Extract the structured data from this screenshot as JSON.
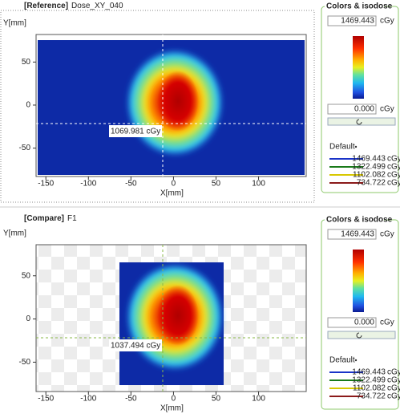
{
  "panels": [
    {
      "tag": "[Reference]",
      "name": "Dose_XY_040",
      "y_axis_label": "Y[mm]",
      "x_axis_label": "X[mm]",
      "xlim": [
        -161.5,
        156
      ],
      "ylim": [
        -83,
        82
      ],
      "xticks": [
        -150,
        -100,
        -50,
        0,
        50,
        100
      ],
      "yticks": [
        50,
        0,
        -50
      ],
      "crosshair_label": "1069.981 cGy",
      "colors": {
        "title": "Colors & isodose",
        "max": "1469.443",
        "min": "0.000",
        "unit": "cGy",
        "default": "Default",
        "isodose": [
          {
            "value": "1469.443",
            "unit": "cGy",
            "color": "#1a33c8"
          },
          {
            "value": "1322.499",
            "unit": "cGy",
            "color": "#1a7a1a"
          },
          {
            "value": "1102.082",
            "unit": "cGy",
            "color": "#d8c800"
          },
          {
            "value": "734.722",
            "unit": "cGy",
            "color": "#8b1a1a"
          }
        ]
      }
    },
    {
      "tag": "[Compare]",
      "name": "F1",
      "y_axis_label": "Y[mm]",
      "x_axis_label": "X[mm]",
      "xlim": [
        -161.5,
        156
      ],
      "ylim": [
        -84,
        86
      ],
      "xticks": [
        -150,
        -100,
        -50,
        0,
        50,
        100
      ],
      "yticks": [
        50,
        0,
        -50
      ],
      "crosshair_label": "1037.494 cGy",
      "colors": {
        "title": "Colors & isodose",
        "max": "1469.443",
        "min": "0.000",
        "unit": "cGy",
        "default": "Default",
        "isodose": [
          {
            "value": "1469.443",
            "unit": "cGy",
            "color": "#1a33c8"
          },
          {
            "value": "1322.499",
            "unit": "cGy",
            "color": "#1a7a1a"
          },
          {
            "value": "1102.082",
            "unit": "cGy",
            "color": "#d8c800"
          },
          {
            "value": "734.722",
            "unit": "cGy",
            "color": "#8b1a1a"
          }
        ]
      }
    }
  ]
}
